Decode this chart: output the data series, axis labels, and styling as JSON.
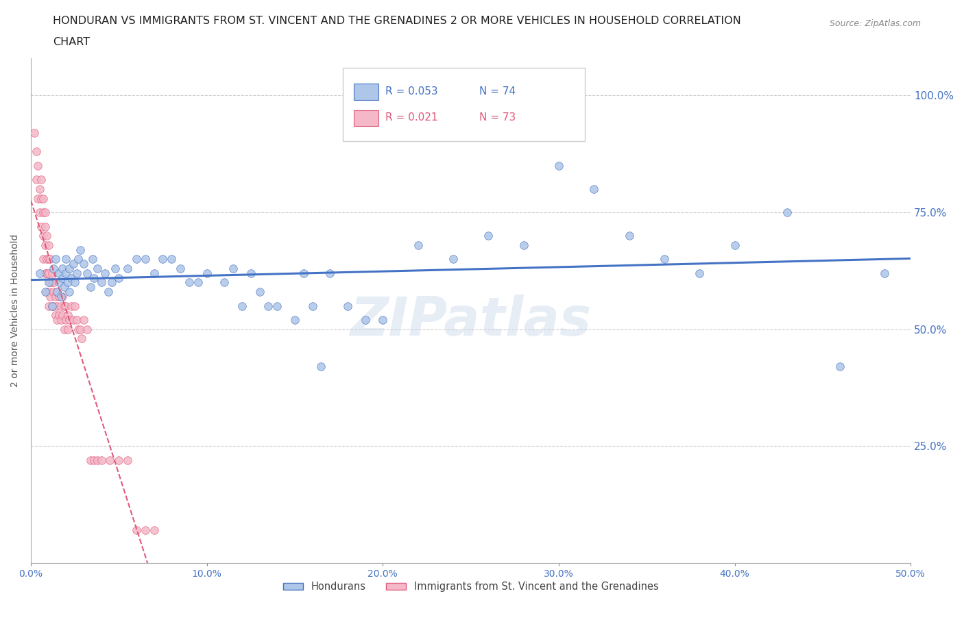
{
  "title_line1": "HONDURAN VS IMMIGRANTS FROM ST. VINCENT AND THE GRENADINES 2 OR MORE VEHICLES IN HOUSEHOLD CORRELATION",
  "title_line2": "CHART",
  "source_text": "Source: ZipAtlas.com",
  "ylabel": "2 or more Vehicles in Household",
  "xmin": 0.0,
  "xmax": 0.5,
  "ymin": 0.0,
  "ymax": 1.08,
  "xtick_labels": [
    "0.0%",
    "10.0%",
    "20.0%",
    "30.0%",
    "40.0%",
    "50.0%"
  ],
  "xtick_values": [
    0.0,
    0.1,
    0.2,
    0.3,
    0.4,
    0.5
  ],
  "ytick_labels": [
    "25.0%",
    "50.0%",
    "75.0%",
    "100.0%"
  ],
  "ytick_values": [
    0.25,
    0.5,
    0.75,
    1.0
  ],
  "grid_color": "#cccccc",
  "background_color": "#ffffff",
  "honduran_color": "#aec6e8",
  "honduran_edge_color": "#4472c4",
  "svg_color": "#f4b8c8",
  "svg_edge_color": "#e05a7a",
  "trend_honduran_color": "#4472c4",
  "trend_svg_color": "#e05a7a",
  "R_honduran": "0.053",
  "N_honduran": "74",
  "R_svg": "0.021",
  "N_svg": "73",
  "watermark": "ZIPatlas",
  "marker_size": 70,
  "honduran_x": [
    0.005,
    0.008,
    0.01,
    0.012,
    0.013,
    0.014,
    0.015,
    0.016,
    0.016,
    0.017,
    0.018,
    0.018,
    0.019,
    0.02,
    0.02,
    0.021,
    0.022,
    0.022,
    0.023,
    0.024,
    0.025,
    0.026,
    0.027,
    0.028,
    0.03,
    0.032,
    0.034,
    0.035,
    0.036,
    0.038,
    0.04,
    0.042,
    0.044,
    0.046,
    0.048,
    0.05,
    0.055,
    0.06,
    0.065,
    0.07,
    0.075,
    0.08,
    0.085,
    0.09,
    0.095,
    0.1,
    0.11,
    0.115,
    0.12,
    0.125,
    0.13,
    0.135,
    0.14,
    0.15,
    0.155,
    0.16,
    0.165,
    0.17,
    0.18,
    0.19,
    0.2,
    0.22,
    0.24,
    0.26,
    0.28,
    0.3,
    0.32,
    0.34,
    0.36,
    0.38,
    0.4,
    0.43,
    0.46,
    0.485
  ],
  "honduran_y": [
    0.62,
    0.58,
    0.6,
    0.55,
    0.63,
    0.65,
    0.58,
    0.6,
    0.62,
    0.57,
    0.61,
    0.63,
    0.59,
    0.62,
    0.65,
    0.6,
    0.58,
    0.63,
    0.61,
    0.64,
    0.6,
    0.62,
    0.65,
    0.67,
    0.64,
    0.62,
    0.59,
    0.65,
    0.61,
    0.63,
    0.6,
    0.62,
    0.58,
    0.6,
    0.63,
    0.61,
    0.63,
    0.65,
    0.65,
    0.62,
    0.65,
    0.65,
    0.63,
    0.6,
    0.6,
    0.62,
    0.6,
    0.63,
    0.55,
    0.62,
    0.58,
    0.55,
    0.55,
    0.52,
    0.62,
    0.55,
    0.42,
    0.62,
    0.55,
    0.52,
    0.52,
    0.68,
    0.65,
    0.7,
    0.68,
    0.85,
    0.8,
    0.7,
    0.65,
    0.62,
    0.68,
    0.75,
    0.42,
    0.62
  ],
  "svg_x": [
    0.002,
    0.003,
    0.003,
    0.004,
    0.004,
    0.005,
    0.005,
    0.006,
    0.006,
    0.006,
    0.007,
    0.007,
    0.007,
    0.007,
    0.008,
    0.008,
    0.008,
    0.008,
    0.009,
    0.009,
    0.009,
    0.009,
    0.01,
    0.01,
    0.01,
    0.01,
    0.01,
    0.011,
    0.011,
    0.011,
    0.012,
    0.012,
    0.012,
    0.013,
    0.013,
    0.013,
    0.014,
    0.014,
    0.015,
    0.015,
    0.015,
    0.016,
    0.016,
    0.017,
    0.017,
    0.018,
    0.018,
    0.019,
    0.019,
    0.02,
    0.02,
    0.021,
    0.021,
    0.022,
    0.023,
    0.024,
    0.025,
    0.026,
    0.027,
    0.028,
    0.029,
    0.03,
    0.032,
    0.034,
    0.036,
    0.038,
    0.04,
    0.045,
    0.05,
    0.055,
    0.06,
    0.065,
    0.07
  ],
  "svg_y": [
    0.92,
    0.88,
    0.82,
    0.85,
    0.78,
    0.8,
    0.75,
    0.82,
    0.78,
    0.72,
    0.78,
    0.75,
    0.7,
    0.65,
    0.75,
    0.72,
    0.68,
    0.62,
    0.7,
    0.65,
    0.62,
    0.58,
    0.68,
    0.65,
    0.62,
    0.58,
    0.55,
    0.65,
    0.6,
    0.57,
    0.62,
    0.6,
    0.55,
    0.6,
    0.58,
    0.55,
    0.57,
    0.53,
    0.58,
    0.55,
    0.52,
    0.57,
    0.53,
    0.55,
    0.52,
    0.57,
    0.53,
    0.55,
    0.5,
    0.55,
    0.52,
    0.53,
    0.5,
    0.52,
    0.55,
    0.52,
    0.55,
    0.52,
    0.5,
    0.5,
    0.48,
    0.52,
    0.5,
    0.22,
    0.22,
    0.22,
    0.22,
    0.22,
    0.22,
    0.22,
    0.07,
    0.07,
    0.07
  ]
}
